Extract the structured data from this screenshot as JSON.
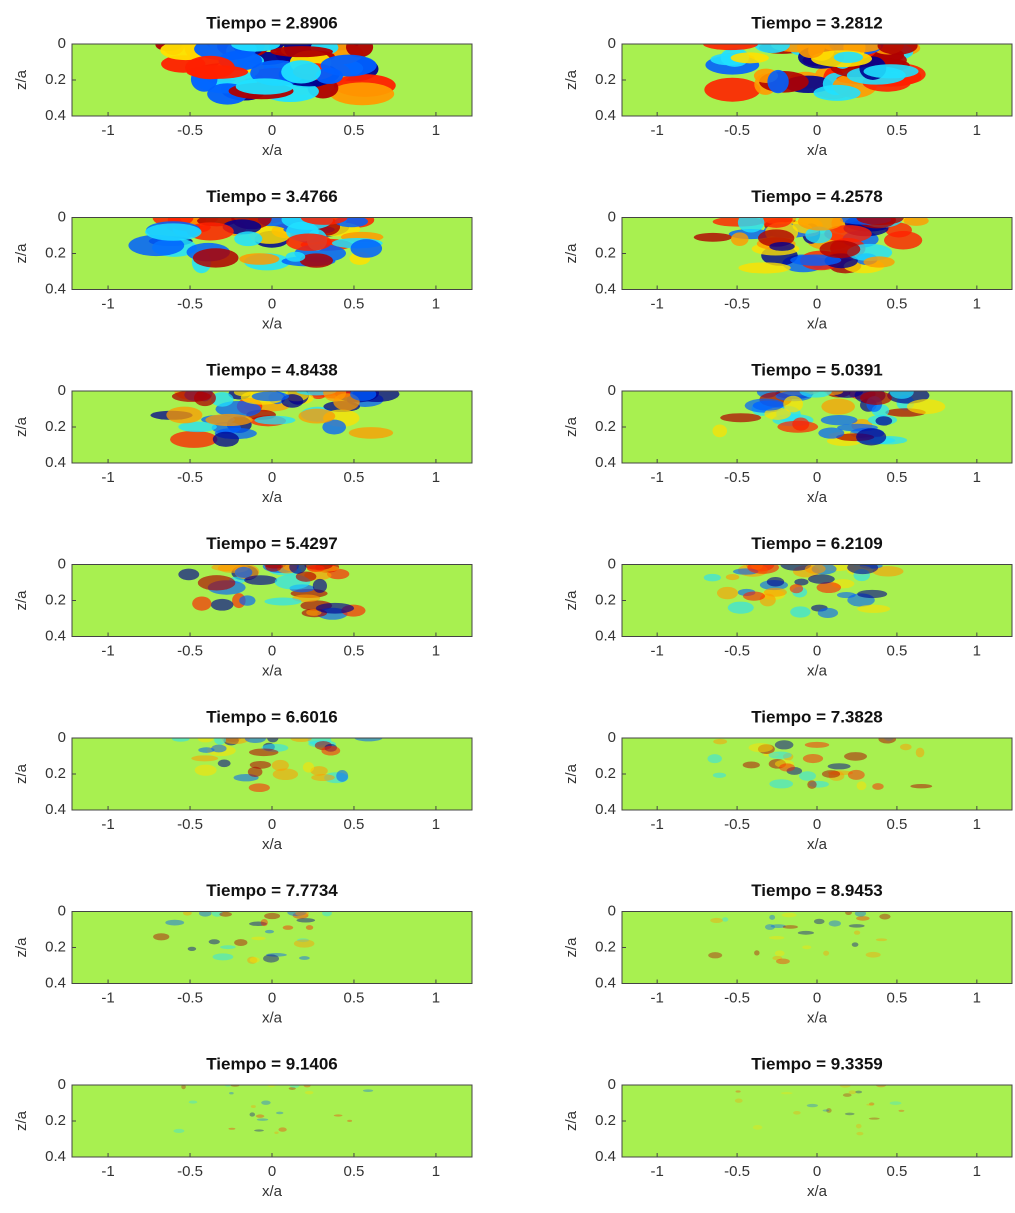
{
  "chart_data": [
    {
      "type": "heatmap",
      "title": "Tiempo = 2.8906",
      "xlabel": "x/a",
      "ylabel": "z/a",
      "xlim": [
        -1.22,
        1.22
      ],
      "ylim": [
        0,
        0.4
      ],
      "y_reversed": true,
      "xticks": [
        -1,
        -0.5,
        0,
        0.5,
        1
      ],
      "yticks": [
        0,
        0.2,
        0.4
      ],
      "field_color": "#a8f050"
    },
    {
      "type": "heatmap",
      "title": "Tiempo = 3.2812",
      "xlabel": "x/a",
      "ylabel": "z/a",
      "xlim": [
        -1.22,
        1.22
      ],
      "ylim": [
        0,
        0.4
      ],
      "y_reversed": true,
      "xticks": [
        -1,
        -0.5,
        0,
        0.5,
        1
      ],
      "yticks": [
        0,
        0.2,
        0.4
      ],
      "field_color": "#a8f050"
    },
    {
      "type": "heatmap",
      "title": "Tiempo = 3.4766",
      "xlabel": "x/a",
      "ylabel": "z/a",
      "xlim": [
        -1.22,
        1.22
      ],
      "ylim": [
        0,
        0.4
      ],
      "y_reversed": true,
      "xticks": [
        -1,
        -0.5,
        0,
        0.5,
        1
      ],
      "yticks": [
        0,
        0.2,
        0.4
      ],
      "field_color": "#a8f050"
    },
    {
      "type": "heatmap",
      "title": "Tiempo = 4.2578",
      "xlabel": "x/a",
      "ylabel": "z/a",
      "xlim": [
        -1.22,
        1.22
      ],
      "ylim": [
        0,
        0.4
      ],
      "y_reversed": true,
      "xticks": [
        -1,
        -0.5,
        0,
        0.5,
        1
      ],
      "yticks": [
        0,
        0.2,
        0.4
      ],
      "field_color": "#a8f050"
    },
    {
      "type": "heatmap",
      "title": "Tiempo = 4.8438",
      "xlabel": "x/a",
      "ylabel": "z/a",
      "xlim": [
        -1.22,
        1.22
      ],
      "ylim": [
        0,
        0.4
      ],
      "y_reversed": true,
      "xticks": [
        -1,
        -0.5,
        0,
        0.5,
        1
      ],
      "yticks": [
        0,
        0.2,
        0.4
      ],
      "field_color": "#a8f050"
    },
    {
      "type": "heatmap",
      "title": "Tiempo = 5.0391",
      "xlabel": "x/a",
      "ylabel": "z/a",
      "xlim": [
        -1.22,
        1.22
      ],
      "ylim": [
        0,
        0.4
      ],
      "y_reversed": true,
      "xticks": [
        -1,
        -0.5,
        0,
        0.5,
        1
      ],
      "yticks": [
        0,
        0.2,
        0.4
      ],
      "field_color": "#a8f050"
    },
    {
      "type": "heatmap",
      "title": "Tiempo = 5.4297",
      "xlabel": "x/a",
      "ylabel": "z/a",
      "xlim": [
        -1.22,
        1.22
      ],
      "ylim": [
        0,
        0.4
      ],
      "y_reversed": true,
      "xticks": [
        -1,
        -0.5,
        0,
        0.5,
        1
      ],
      "yticks": [
        0,
        0.2,
        0.4
      ],
      "field_color": "#a8f050"
    },
    {
      "type": "heatmap",
      "title": "Tiempo = 6.2109",
      "xlabel": "x/a",
      "ylabel": "z/a",
      "xlim": [
        -1.22,
        1.22
      ],
      "ylim": [
        0,
        0.4
      ],
      "y_reversed": true,
      "xticks": [
        -1,
        -0.5,
        0,
        0.5,
        1
      ],
      "yticks": [
        0,
        0.2,
        0.4
      ],
      "field_color": "#a8f050"
    },
    {
      "type": "heatmap",
      "title": "Tiempo = 6.6016",
      "xlabel": "x/a",
      "ylabel": "z/a",
      "xlim": [
        -1.22,
        1.22
      ],
      "ylim": [
        0,
        0.4
      ],
      "y_reversed": true,
      "xticks": [
        -1,
        -0.5,
        0,
        0.5,
        1
      ],
      "yticks": [
        0,
        0.2,
        0.4
      ],
      "field_color": "#a8f050"
    },
    {
      "type": "heatmap",
      "title": "Tiempo = 7.3828",
      "xlabel": "x/a",
      "ylabel": "z/a",
      "xlim": [
        -1.22,
        1.22
      ],
      "ylim": [
        0,
        0.4
      ],
      "y_reversed": true,
      "xticks": [
        -1,
        -0.5,
        0,
        0.5,
        1
      ],
      "yticks": [
        0,
        0.2,
        0.4
      ],
      "field_color": "#a8f050"
    },
    {
      "type": "heatmap",
      "title": "Tiempo = 7.7734",
      "xlabel": "x/a",
      "ylabel": "z/a",
      "xlim": [
        -1.22,
        1.22
      ],
      "ylim": [
        0,
        0.4
      ],
      "y_reversed": true,
      "xticks": [
        -1,
        -0.5,
        0,
        0.5,
        1
      ],
      "yticks": [
        0,
        0.2,
        0.4
      ],
      "field_color": "#a8f050"
    },
    {
      "type": "heatmap",
      "title": "Tiempo = 8.9453",
      "xlabel": "x/a",
      "ylabel": "z/a",
      "xlim": [
        -1.22,
        1.22
      ],
      "ylim": [
        0,
        0.4
      ],
      "y_reversed": true,
      "xticks": [
        -1,
        -0.5,
        0,
        0.5,
        1
      ],
      "yticks": [
        0,
        0.2,
        0.4
      ],
      "field_color": "#a8f050"
    },
    {
      "type": "heatmap",
      "title": "Tiempo = 9.1406",
      "xlabel": "x/a",
      "ylabel": "z/a",
      "xlim": [
        -1.22,
        1.22
      ],
      "ylim": [
        0,
        0.4
      ],
      "y_reversed": true,
      "xticks": [
        -1,
        -0.5,
        0,
        0.5,
        1
      ],
      "yticks": [
        0,
        0.2,
        0.4
      ],
      "field_color": "#a8f050"
    },
    {
      "type": "heatmap",
      "title": "Tiempo = 9.3359",
      "xlabel": "x/a",
      "ylabel": "z/a",
      "xlim": [
        -1.22,
        1.22
      ],
      "ylim": [
        0,
        0.4
      ],
      "y_reversed": true,
      "xticks": [
        -1,
        -0.5,
        0,
        0.5,
        1
      ],
      "yticks": [
        0,
        0.2,
        0.4
      ],
      "field_color": "#a8f050"
    }
  ]
}
